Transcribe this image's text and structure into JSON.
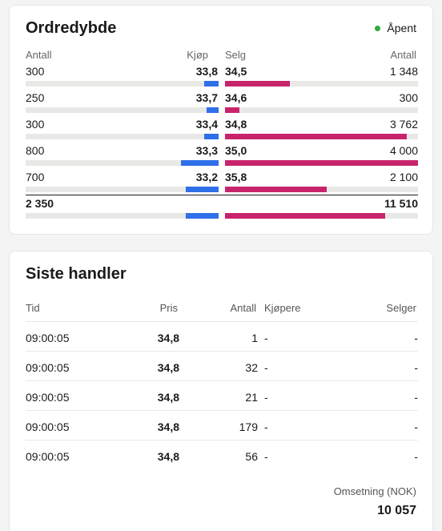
{
  "colors": {
    "buy": "#2f6fe8",
    "sell": "#c8246c",
    "status": "#2eaa3f",
    "track": "#e8e8e6"
  },
  "depth": {
    "title": "Ordredybde",
    "status_label": "Åpent",
    "headers": {
      "buy_qty": "Antall",
      "buy_price": "Kjøp",
      "sell_price": "Selg",
      "sell_qty": "Antall"
    },
    "rows": [
      {
        "buy_qty": "300",
        "buy_price": "33,8",
        "sell_price": "34,5",
        "sell_qty": "1 348",
        "buy_fill": 0.073,
        "sell_fill": 0.337
      },
      {
        "buy_qty": "250",
        "buy_price": "33,7",
        "sell_price": "34,6",
        "sell_qty": "300",
        "buy_fill": 0.061,
        "sell_fill": 0.075
      },
      {
        "buy_qty": "300",
        "buy_price": "33,4",
        "sell_price": "34,8",
        "sell_qty": "3 762",
        "buy_fill": 0.073,
        "sell_fill": 0.941
      },
      {
        "buy_qty": "800",
        "buy_price": "33,3",
        "sell_price": "35,0",
        "sell_qty": "4 000",
        "buy_fill": 0.195,
        "sell_fill": 1.0
      },
      {
        "buy_qty": "700",
        "buy_price": "33,2",
        "sell_price": "35,8",
        "sell_qty": "2 100",
        "buy_fill": 0.171,
        "sell_fill": 0.525
      }
    ],
    "totals": {
      "buy": "2 350",
      "sell": "11 510",
      "buy_fill": 0.17,
      "sell_fill": 0.83
    }
  },
  "trades": {
    "title": "Siste handler",
    "headers": {
      "time": "Tid",
      "price": "Pris",
      "qty": "Antall",
      "buyer": "Kjøpere",
      "seller": "Selger"
    },
    "rows": [
      {
        "time": "09:00:05",
        "price": "34,8",
        "qty": "1",
        "buyer": "-",
        "seller": "-"
      },
      {
        "time": "09:00:05",
        "price": "34,8",
        "qty": "32",
        "buyer": "-",
        "seller": "-"
      },
      {
        "time": "09:00:05",
        "price": "34,8",
        "qty": "21",
        "buyer": "-",
        "seller": "-"
      },
      {
        "time": "09:00:05",
        "price": "34,8",
        "qty": "179",
        "buyer": "-",
        "seller": "-"
      },
      {
        "time": "09:00:05",
        "price": "34,8",
        "qty": "56",
        "buyer": "-",
        "seller": "-"
      }
    ],
    "turnover_label": "Omsetning (NOK)",
    "turnover_value": "10 057"
  }
}
